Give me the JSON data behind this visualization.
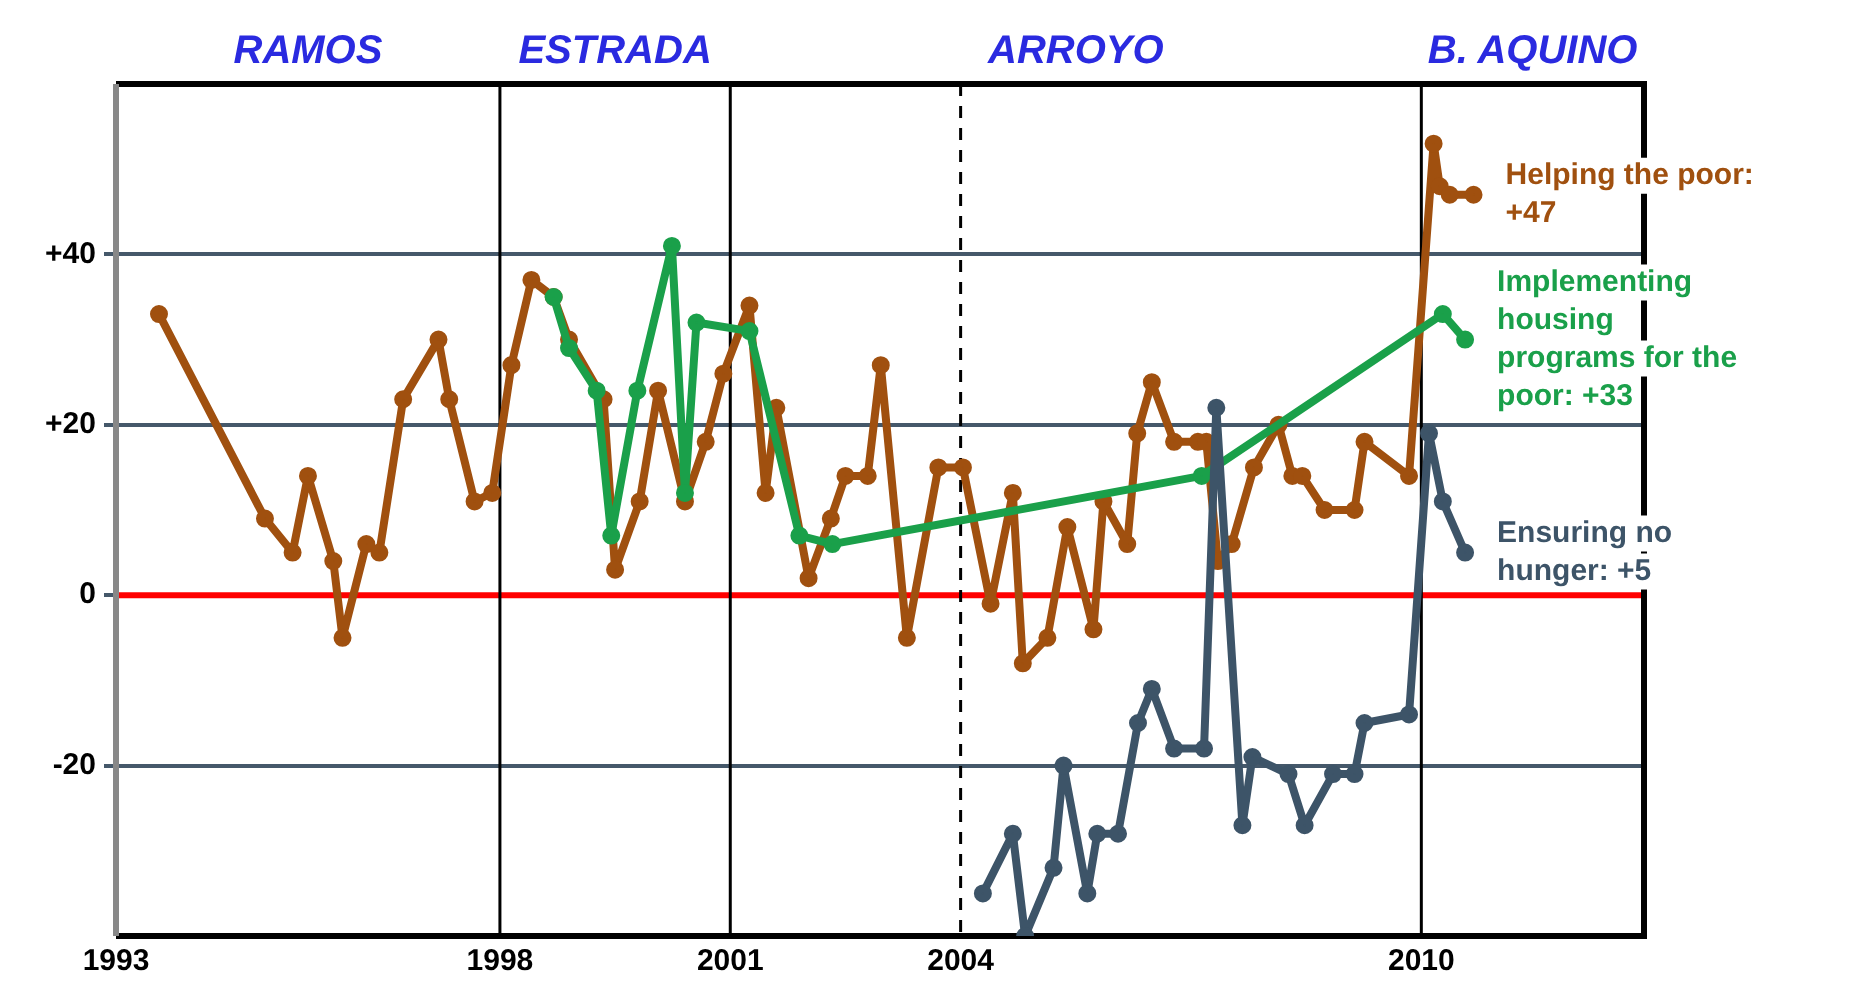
{
  "chart_data": {
    "type": "line",
    "marker": "circle",
    "legend": false,
    "grid": "y",
    "xlim": [
      1993,
      2012.9
    ],
    "xticks": [
      1993,
      1998,
      2001,
      2004,
      2010
    ],
    "ylim": [
      -40,
      60
    ],
    "yticks": [
      {
        "value": -20,
        "label": "-20"
      },
      0,
      {
        "value": 20,
        "label": "+20"
      },
      {
        "value": 40,
        "label": "+40"
      }
    ],
    "annotations": [
      "RAMOS",
      "ESTRADA",
      "ARROYO",
      "B. AQUINO"
    ],
    "ref_lines": [
      {
        "axis": "y",
        "value": 0,
        "color": "#ff0000",
        "line_style": "solid"
      },
      {
        "axis": "x",
        "value": 1998,
        "color": "#000000",
        "line_style": "solid"
      },
      {
        "axis": "x",
        "value": 2001,
        "color": "#000000",
        "line_style": "solid"
      },
      {
        "axis": "x",
        "value": 2004,
        "color": "#000000",
        "line_style": "dashed"
      },
      {
        "axis": "x",
        "value": 2010,
        "color": "#000000",
        "line_style": "solid"
      }
    ],
    "series": [
      {
        "name": "Helping the poor: +47",
        "color": "#a0500f",
        "x": [
          1993.56,
          1994.94,
          1995.3,
          1995.5,
          1995.83,
          1995.95,
          1996.26,
          1996.43,
          1996.74,
          1997.2,
          1997.34,
          1997.67,
          1997.9,
          1998.15,
          1998.41,
          1998.7,
          1998.9,
          1999.35,
          1999.5,
          1999.82,
          2000.06,
          2000.41,
          2000.68,
          2000.91,
          2001.25,
          2001.46,
          2001.6,
          2002.02,
          2002.31,
          2002.5,
          2002.79,
          2002.96,
          2003.3,
          2003.71,
          2004.03,
          2004.39,
          2004.68,
          2004.81,
          2005.13,
          2005.39,
          2005.73,
          2005.86,
          2006.17,
          2006.3,
          2006.49,
          2006.78,
          2007.09,
          2007.2,
          2007.35,
          2007.53,
          2007.82,
          2008.14,
          2008.32,
          2008.45,
          2008.74,
          2009.13,
          2009.26,
          2009.84,
          2010.16,
          2010.24,
          2010.37,
          2010.68
        ],
        "values": [
          33,
          9,
          5,
          14,
          4,
          -5,
          6,
          5,
          23,
          30,
          23,
          11,
          12,
          27,
          37,
          35,
          30,
          23,
          3,
          11,
          24,
          11,
          18,
          26,
          34,
          12,
          22,
          2,
          9,
          14,
          14,
          27,
          -5,
          15,
          15,
          -1,
          12,
          -8,
          -5,
          8,
          -4,
          11,
          6,
          19,
          25,
          18,
          18,
          18,
          4,
          6,
          15,
          20,
          14,
          14,
          10,
          10,
          18,
          14,
          53,
          48,
          47,
          47
        ]
      },
      {
        "name": "Implementing housing programs for the poor: +33",
        "color": "#1aa04a",
        "x": [
          1998.7,
          1998.9,
          1999.26,
          1999.45,
          1999.79,
          2000.24,
          2000.41,
          2000.56,
          2001.25,
          2001.9,
          2002.33,
          2007.14,
          2010.28,
          2010.57
        ],
        "values": [
          35,
          29,
          24,
          7,
          24,
          41,
          12,
          32,
          31,
          7,
          6,
          14,
          33,
          30
        ]
      },
      {
        "name": "Ensuring no hunger: +5",
        "color": "#3d5468",
        "x": [
          2004.29,
          2004.68,
          2004.84,
          2005.21,
          2005.34,
          2005.65,
          2005.78,
          2006.05,
          2006.31,
          2006.49,
          2006.78,
          2007.17,
          2007.33,
          2007.67,
          2007.8,
          2008.27,
          2008.48,
          2008.85,
          2009.13,
          2009.26,
          2009.84,
          2010.1,
          2010.28,
          2010.57
        ],
        "values": [
          -35,
          -28,
          -40,
          -32,
          -20,
          -35,
          -28,
          -28,
          -15,
          -11,
          -18,
          -18,
          22,
          -27,
          -19,
          -21,
          -27,
          -21,
          -21,
          -15,
          -14,
          19,
          11,
          5
        ]
      }
    ]
  }
}
